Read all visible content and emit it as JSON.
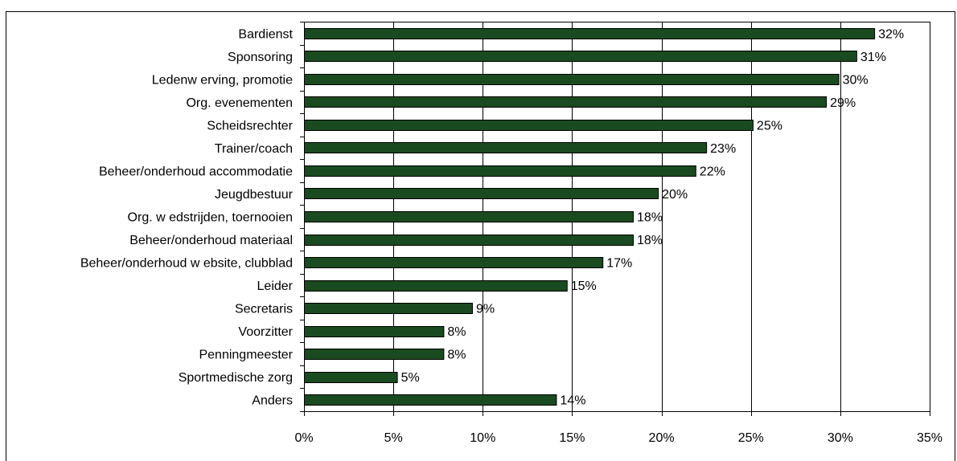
{
  "chart_data": {
    "type": "bar",
    "orientation": "horizontal",
    "categories": [
      "Bardienst",
      "Sponsoring",
      "Ledenw erving, promotie",
      "Org. evenementen",
      "Scheidsrechter",
      "Trainer/coach",
      "Beheer/onderhoud accommodatie",
      "Jeugdbestuur",
      "Org. w edstrijden, toernooien",
      "Beheer/onderhoud materiaal",
      "Beheer/onderhoud w ebsite, clubblad",
      "Leider",
      "Secretaris",
      "Voorzitter",
      "Penningmeester",
      "Sportmedische zorg",
      "Anders"
    ],
    "values": [
      31.9,
      30.9,
      29.9,
      29.2,
      25.1,
      22.5,
      21.9,
      19.8,
      18.4,
      18.4,
      16.7,
      14.7,
      9.4,
      7.8,
      7.8,
      5.2,
      14.1
    ],
    "data_labels": [
      "32%",
      "31%",
      "30%",
      "29%",
      "25%",
      "23%",
      "22%",
      "20%",
      "18%",
      "18%",
      "17%",
      "15%",
      "9%",
      "8%",
      "8%",
      "5%",
      "14%"
    ],
    "xlim": [
      0,
      35
    ],
    "x_ticks": [
      0,
      5,
      10,
      15,
      20,
      25,
      30,
      35
    ],
    "x_tick_labels": [
      "0%",
      "5%",
      "10%",
      "15%",
      "20%",
      "25%",
      "30%",
      "35%"
    ],
    "grid": true,
    "legend": false,
    "bar_color": "#1a4a1f"
  }
}
